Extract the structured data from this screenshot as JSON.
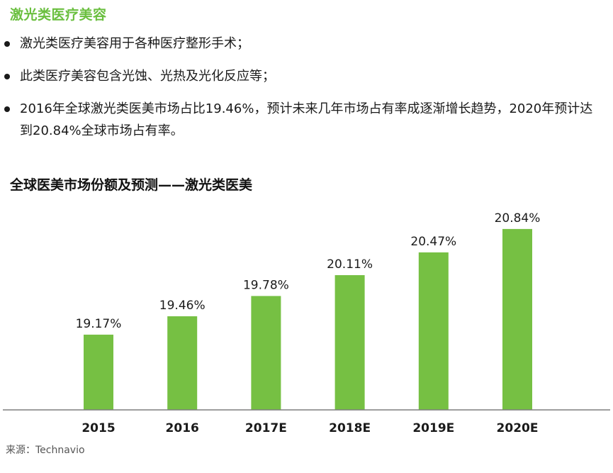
{
  "header": {
    "title": "激光类医疗美容"
  },
  "bullets": [
    "激光类医疗美容用于各种医疗整形手术；",
    "此类医疗美容包含光蚀、光热及光化反应等；",
    "2016年全球激光类医美市场占比19.46%，预计未来几年市场占有率成逐渐增长趋势，2020年预计达到20.84%全球市场占有率。"
  ],
  "chart_title": "全球医美市场份额及预测——激光类医美",
  "source": "来源：Technavio",
  "chart_data": {
    "type": "bar",
    "title": "全球医美市场份额及预测——激光类医美",
    "categories": [
      "2015",
      "2016",
      "2017E",
      "2018E",
      "2019E",
      "2020E"
    ],
    "values": [
      19.17,
      19.46,
      19.78,
      20.11,
      20.47,
      20.84
    ],
    "data_labels": [
      "19.17%",
      "19.46%",
      "19.78%",
      "20.11%",
      "20.47%",
      "20.84%"
    ],
    "xlabel": "",
    "ylabel": "",
    "bar_color": "#76c043",
    "axis_color": "#7f7f7f",
    "grid": false,
    "legend": "none"
  }
}
